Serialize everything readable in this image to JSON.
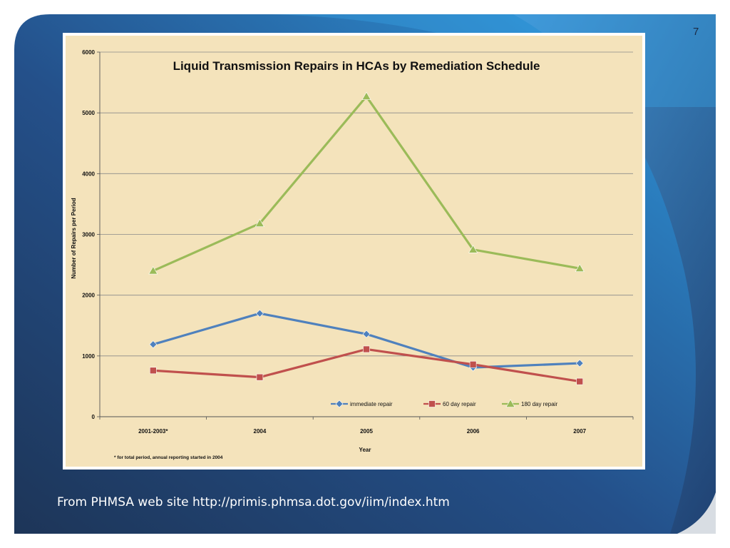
{
  "slide": {
    "number": "7",
    "caption": "From PHMSA web site http://primis.phmsa.dot.gov/iim/index.htm"
  },
  "colors": {
    "background_dark": "#1f3a66",
    "background_mid": "#2b86c8",
    "chart_panel": "#f4e3bb",
    "immediate": "#4f81bd",
    "sixty_day": "#c0504d",
    "one_eighty_day": "#9bbb59"
  },
  "chart_data": {
    "type": "line",
    "title": "Liquid Transmission Repairs in HCAs by Remediation Schedule",
    "xlabel": "Year",
    "ylabel": "Number of Repairs per Period",
    "footnote": "* for total period, annual reporting started in 2004",
    "categories": [
      "2001-2003*",
      "2004",
      "2005",
      "2006",
      "2007"
    ],
    "ylim": [
      0,
      6000
    ],
    "yticks": [
      "0",
      "1000",
      "2000",
      "3000",
      "4000",
      "5000",
      "6000"
    ],
    "grid": true,
    "legend_position": "bottom-right",
    "series": [
      {
        "name": "immediate repair",
        "marker": "diamond",
        "color": "#4f81bd",
        "values": [
          1190,
          1700,
          1360,
          810,
          880
        ]
      },
      {
        "name": "60 day repair",
        "marker": "square",
        "color": "#c0504d",
        "values": [
          760,
          650,
          1110,
          860,
          580
        ]
      },
      {
        "name": "180 day repair",
        "marker": "triangle",
        "color": "#9bbb59",
        "values": [
          2400,
          3180,
          5270,
          2750,
          2440
        ]
      }
    ]
  }
}
